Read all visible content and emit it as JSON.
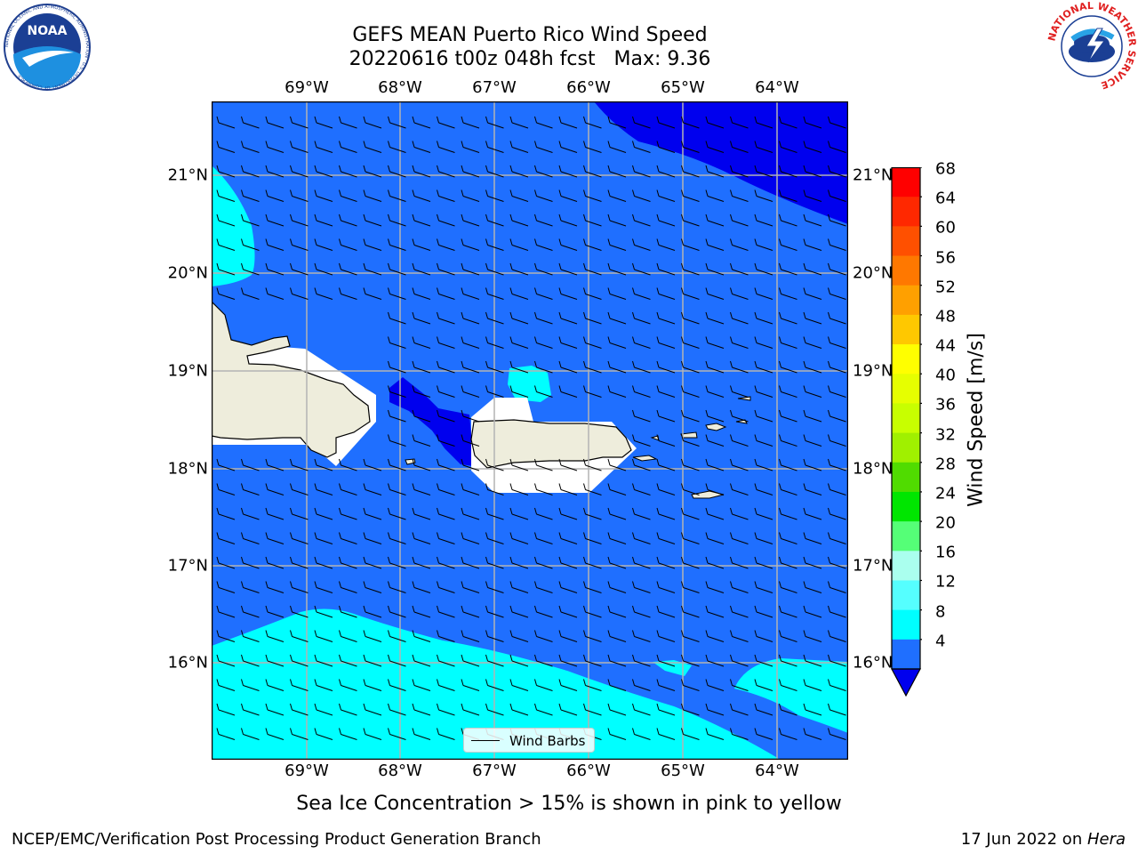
{
  "title": {
    "line1": "GEFS MEAN Puerto Rico Wind Speed",
    "line2": "20220616 t00z 048h fcst   Max: 9.36"
  },
  "map": {
    "lon_labels": [
      "69°W",
      "68°W",
      "67°W",
      "66°W",
      "65°W",
      "64°W"
    ],
    "lat_labels": [
      "21°N",
      "20°N",
      "19°N",
      "18°N",
      "17°N",
      "16°N"
    ],
    "legend_label": "Wind Barbs",
    "fill_colors": {
      "level_4_8": "#1f6fff",
      "level_below_4": "#0000ee",
      "level_8_12": "#00ffff",
      "land": "#eeeddc"
    }
  },
  "colorbar": {
    "label": "Wind Speed [m/s]",
    "ticks": [
      "68",
      "64",
      "60",
      "56",
      "52",
      "48",
      "44",
      "40",
      "36",
      "32",
      "28",
      "24",
      "20",
      "16",
      "12",
      "8",
      "4"
    ],
    "colors": [
      "#ff0000",
      "#ff2800",
      "#ff5000",
      "#ff7800",
      "#ffa000",
      "#ffc800",
      "#ffff00",
      "#e6ff00",
      "#c8ff00",
      "#a0f000",
      "#50dc00",
      "#00e600",
      "#55ff77",
      "#aaffee",
      "#55ffff",
      "#00ffff",
      "#1f6fff"
    ],
    "extend_color": "#0000ee"
  },
  "subtitle": "Sea Ice Concentration > 15% is shown in pink to yellow",
  "footer": {
    "left": "NCEP/EMC/Verification Post Processing Product Generation Branch",
    "right_date": "17 Jun 2022 on ",
    "right_host": "Hera"
  },
  "logos": {
    "noaa_text": "NOAA",
    "noaa_ring_text": "NATIONAL OCEANIC AND ATMOSPHERIC ADMINISTRATION · U.S. DEPARTMENT OF COMMERCE",
    "nws_ring_text": "NATIONAL WEATHER SERVICE"
  }
}
